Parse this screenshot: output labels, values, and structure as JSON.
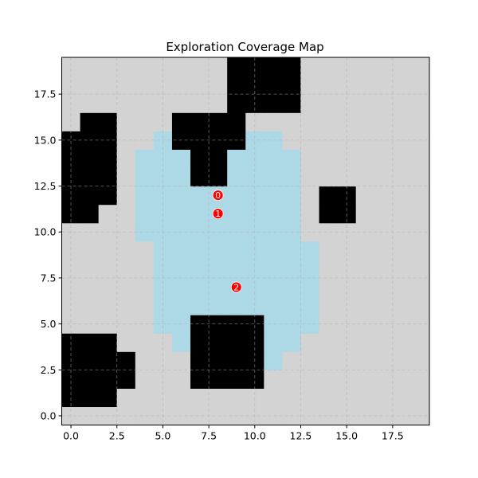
{
  "chart_data": {
    "type": "heatmap",
    "title": "Exploration Coverage Map",
    "xlabel": "",
    "ylabel": "",
    "grid_size": [
      20,
      20
    ],
    "xlim": [
      -0.5,
      19.5
    ],
    "ylim": [
      -0.5,
      19.5
    ],
    "x_ticks": [
      0.0,
      2.5,
      5.0,
      7.5,
      10.0,
      12.5,
      15.0,
      17.5
    ],
    "y_ticks": [
      0.0,
      2.5,
      5.0,
      7.5,
      10.0,
      12.5,
      15.0,
      17.5
    ],
    "x_tick_labels": [
      "0.0",
      "2.5",
      "5.0",
      "7.5",
      "10.0",
      "12.5",
      "15.0",
      "17.5"
    ],
    "y_tick_labels": [
      "0.0",
      "2.5",
      "5.0",
      "7.5",
      "10.0",
      "12.5",
      "15.0",
      "17.5"
    ],
    "grid": true,
    "cell_states": [
      "unexplored",
      "obstacle",
      "explored"
    ],
    "colors": {
      "unexplored": "#d3d3d3",
      "obstacle": "#000000",
      "explored": "#add8e6",
      "marker": "#ff0000",
      "grid": "#b0b0b0"
    },
    "obstacle_cells": [
      [
        0,
        1
      ],
      [
        1,
        1
      ],
      [
        2,
        1
      ],
      [
        0,
        2
      ],
      [
        1,
        2
      ],
      [
        2,
        2
      ],
      [
        3,
        2
      ],
      [
        0,
        3
      ],
      [
        1,
        3
      ],
      [
        2,
        3
      ],
      [
        3,
        3
      ],
      [
        0,
        4
      ],
      [
        1,
        4
      ],
      [
        2,
        4
      ],
      [
        7,
        2
      ],
      [
        8,
        2
      ],
      [
        9,
        2
      ],
      [
        10,
        2
      ],
      [
        7,
        3
      ],
      [
        8,
        3
      ],
      [
        9,
        3
      ],
      [
        10,
        3
      ],
      [
        7,
        4
      ],
      [
        8,
        4
      ],
      [
        9,
        4
      ],
      [
        10,
        4
      ],
      [
        7,
        5
      ],
      [
        8,
        5
      ],
      [
        9,
        5
      ],
      [
        10,
        5
      ],
      [
        0,
        11
      ],
      [
        1,
        11
      ],
      [
        0,
        12
      ],
      [
        1,
        12
      ],
      [
        2,
        12
      ],
      [
        0,
        13
      ],
      [
        1,
        13
      ],
      [
        2,
        13
      ],
      [
        0,
        14
      ],
      [
        1,
        14
      ],
      [
        2,
        14
      ],
      [
        0,
        15
      ],
      [
        1,
        15
      ],
      [
        2,
        15
      ],
      [
        1,
        16
      ],
      [
        2,
        16
      ],
      [
        14,
        11
      ],
      [
        15,
        11
      ],
      [
        14,
        12
      ],
      [
        15,
        12
      ],
      [
        7,
        13
      ],
      [
        8,
        13
      ],
      [
        7,
        14
      ],
      [
        8,
        14
      ],
      [
        6,
        15
      ],
      [
        7,
        15
      ],
      [
        8,
        15
      ],
      [
        9,
        15
      ],
      [
        6,
        16
      ],
      [
        7,
        16
      ],
      [
        8,
        16
      ],
      [
        9,
        16
      ],
      [
        9,
        17
      ],
      [
        10,
        17
      ],
      [
        11,
        17
      ],
      [
        12,
        17
      ],
      [
        9,
        18
      ],
      [
        10,
        18
      ],
      [
        11,
        18
      ],
      [
        12,
        18
      ],
      [
        9,
        19
      ],
      [
        10,
        19
      ],
      [
        11,
        19
      ],
      [
        12,
        19
      ]
    ],
    "explored_rows": [
      {
        "y": 3,
        "x_ranges": [
          [
            11,
            11
          ]
        ]
      },
      {
        "y": 4,
        "x_ranges": [
          [
            6,
            6
          ],
          [
            11,
            12
          ]
        ]
      },
      {
        "y": 5,
        "x_ranges": [
          [
            5,
            6
          ],
          [
            11,
            13
          ]
        ]
      },
      {
        "y": 6,
        "x_ranges": [
          [
            5,
            13
          ]
        ]
      },
      {
        "y": 7,
        "x_ranges": [
          [
            5,
            13
          ]
        ]
      },
      {
        "y": 8,
        "x_ranges": [
          [
            5,
            13
          ]
        ]
      },
      {
        "y": 9,
        "x_ranges": [
          [
            5,
            13
          ]
        ]
      },
      {
        "y": 10,
        "x_ranges": [
          [
            4,
            12
          ]
        ]
      },
      {
        "y": 11,
        "x_ranges": [
          [
            4,
            12
          ]
        ]
      },
      {
        "y": 12,
        "x_ranges": [
          [
            4,
            12
          ]
        ]
      },
      {
        "y": 13,
        "x_ranges": [
          [
            4,
            6
          ],
          [
            9,
            12
          ]
        ]
      },
      {
        "y": 14,
        "x_ranges": [
          [
            4,
            6
          ],
          [
            9,
            12
          ]
        ]
      },
      {
        "y": 15,
        "x_ranges": [
          [
            5,
            5
          ],
          [
            10,
            11
          ]
        ]
      }
    ],
    "markers": [
      {
        "label": "0",
        "x": 8,
        "y": 12
      },
      {
        "label": "1",
        "x": 8,
        "y": 11
      },
      {
        "label": "2",
        "x": 9,
        "y": 7
      }
    ]
  }
}
